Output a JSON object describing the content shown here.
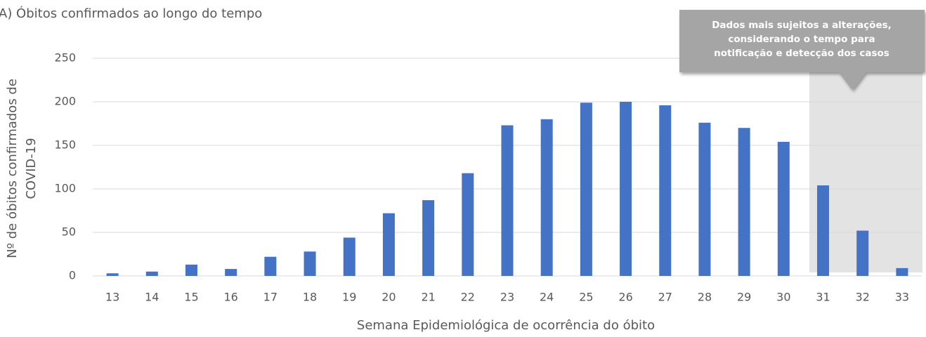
{
  "chart_data": {
    "type": "bar",
    "title": "A)  Óbitos confirmados ao longo do tempo",
    "x_label": "Semana Epidemiológica de ocorrência do óbito",
    "y_label": [
      "Nº de óbitos confirmados de",
      "COVID-19"
    ],
    "annotation": [
      "Dados mais sujeitos a alterações,",
      "considerando o tempo para",
      "notificação e detecção dos casos"
    ],
    "categories": [
      "13",
      "14",
      "15",
      "16",
      "17",
      "18",
      "19",
      "20",
      "21",
      "22",
      "23",
      "24",
      "25",
      "26",
      "27",
      "28",
      "29",
      "30",
      "31",
      "32",
      "33"
    ],
    "values": [
      3,
      5,
      13,
      8,
      22,
      28,
      44,
      72,
      87,
      118,
      173,
      180,
      199,
      200,
      196,
      176,
      170,
      154,
      104,
      52,
      9
    ],
    "color": "#4472c4",
    "ylim": [
      0,
      250
    ],
    "yticks": [
      0,
      50,
      100,
      150,
      200,
      250
    ],
    "grid": true
  }
}
